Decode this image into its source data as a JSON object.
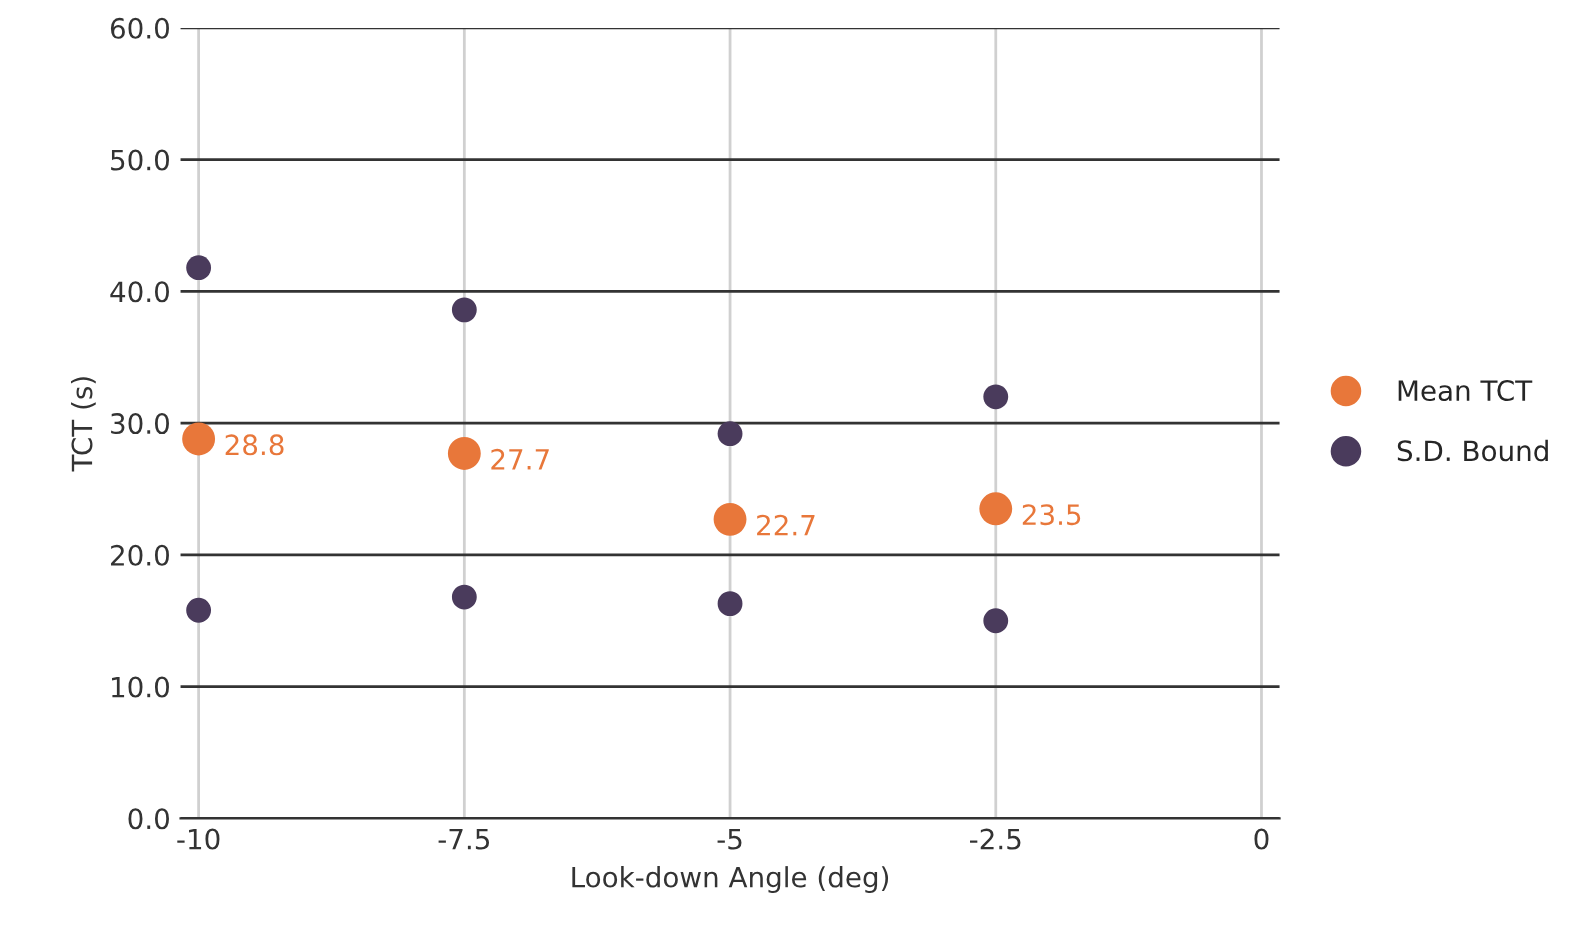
{
  "chart_data": {
    "type": "scatter",
    "xlabel": "Look-down Angle (deg)",
    "ylabel": "TCT (s)",
    "xlim": [
      -10.17,
      0.17
    ],
    "xticks": [
      -10,
      -7.5,
      -5,
      -2.5,
      0
    ],
    "ylim": [
      0,
      60
    ],
    "yticks": [
      {
        "value": 0,
        "label": "0.0"
      },
      {
        "value": 10,
        "label": "10.0"
      },
      {
        "value": 20,
        "label": "20.0"
      },
      {
        "value": 30,
        "label": "30.0"
      },
      {
        "value": 40,
        "label": "40.0"
      },
      {
        "value": 50,
        "label": "50.0"
      },
      {
        "value": 60,
        "label": "60.0"
      }
    ],
    "grid": true,
    "legend": "right",
    "marker": "circle",
    "series": [
      {
        "name": "Mean TCT",
        "color": "#e8773a",
        "x": [
          -10,
          -7.5,
          -5,
          -2.5
        ],
        "values": [
          28.8,
          27.7,
          22.7,
          23.5
        ],
        "value_labels": [
          "28.8",
          "27.7",
          "22.7",
          "23.5"
        ]
      },
      {
        "name": "S.D. Bound",
        "color": "#4a3b5c",
        "x": [
          -10,
          -10,
          -7.5,
          -7.5,
          -5,
          -5,
          -2.5,
          -2.5
        ],
        "values": [
          41.8,
          15.8,
          38.6,
          16.8,
          29.2,
          16.3,
          32.0,
          15.0
        ]
      }
    ]
  }
}
